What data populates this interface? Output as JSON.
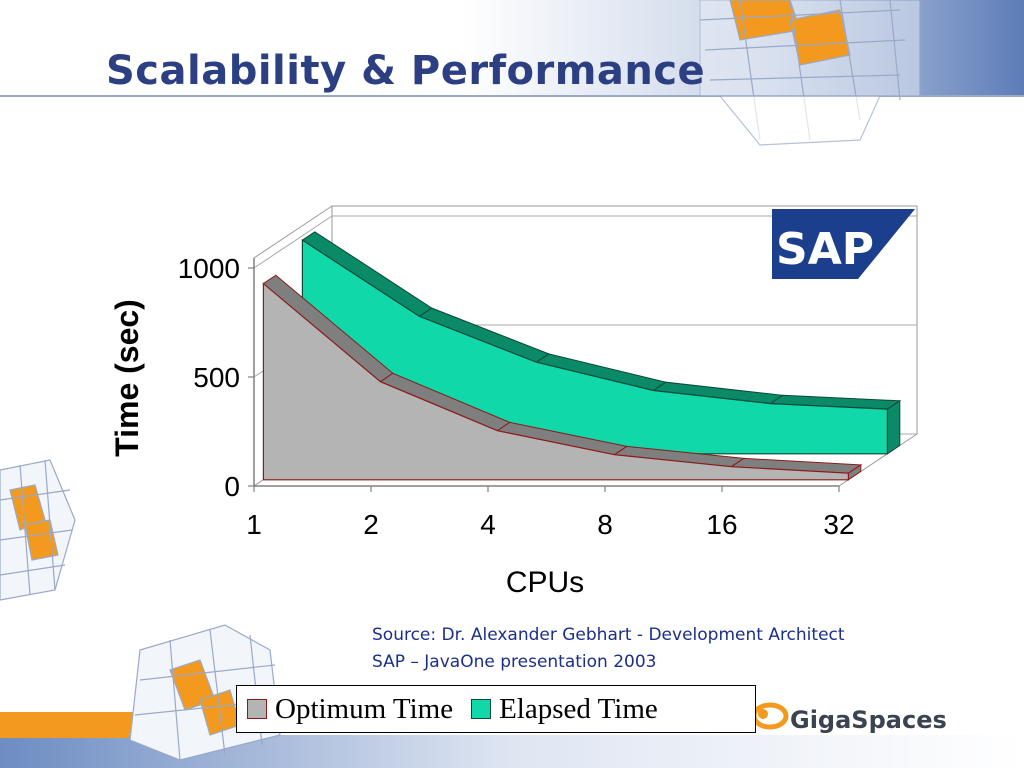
{
  "slide": {
    "title": "Scalability & Performance",
    "source_lines": [
      "Source: Dr. Alexander Gebhart - Development Architect",
      "SAP – JavaOne presentation 2003"
    ],
    "sap_logo_text": "SAP",
    "gigaspaces_logo_text": "GigaSpaces"
  },
  "colors": {
    "title": "#2b3f82",
    "optimum_fill": "#b4b4b4",
    "optimum_top": "#7f7f7f",
    "optimum_edge": "#8b1a1a",
    "elapsed_fill": "#10d8a8",
    "elapsed_top": "#0b8a68",
    "sap_blue": "#1b3f8c",
    "accent_orange": "#f39a1e"
  },
  "chart_data": {
    "type": "area",
    "xlabel": "CPUs",
    "ylabel": "Time (sec)",
    "categories": [
      "1",
      "2",
      "4",
      "8",
      "16",
      "32"
    ],
    "yticks": [
      "0",
      "500",
      "1000"
    ],
    "ylim": [
      0,
      1000
    ],
    "grid": true,
    "three_d": true,
    "legend_position": "bottom",
    "series": [
      {
        "name": "Optimum Time",
        "values": [
          900,
          450,
          225,
          115,
          60,
          30
        ]
      },
      {
        "name": "Elapsed Time",
        "values": [
          980,
          630,
          420,
          290,
          230,
          205
        ]
      }
    ]
  }
}
